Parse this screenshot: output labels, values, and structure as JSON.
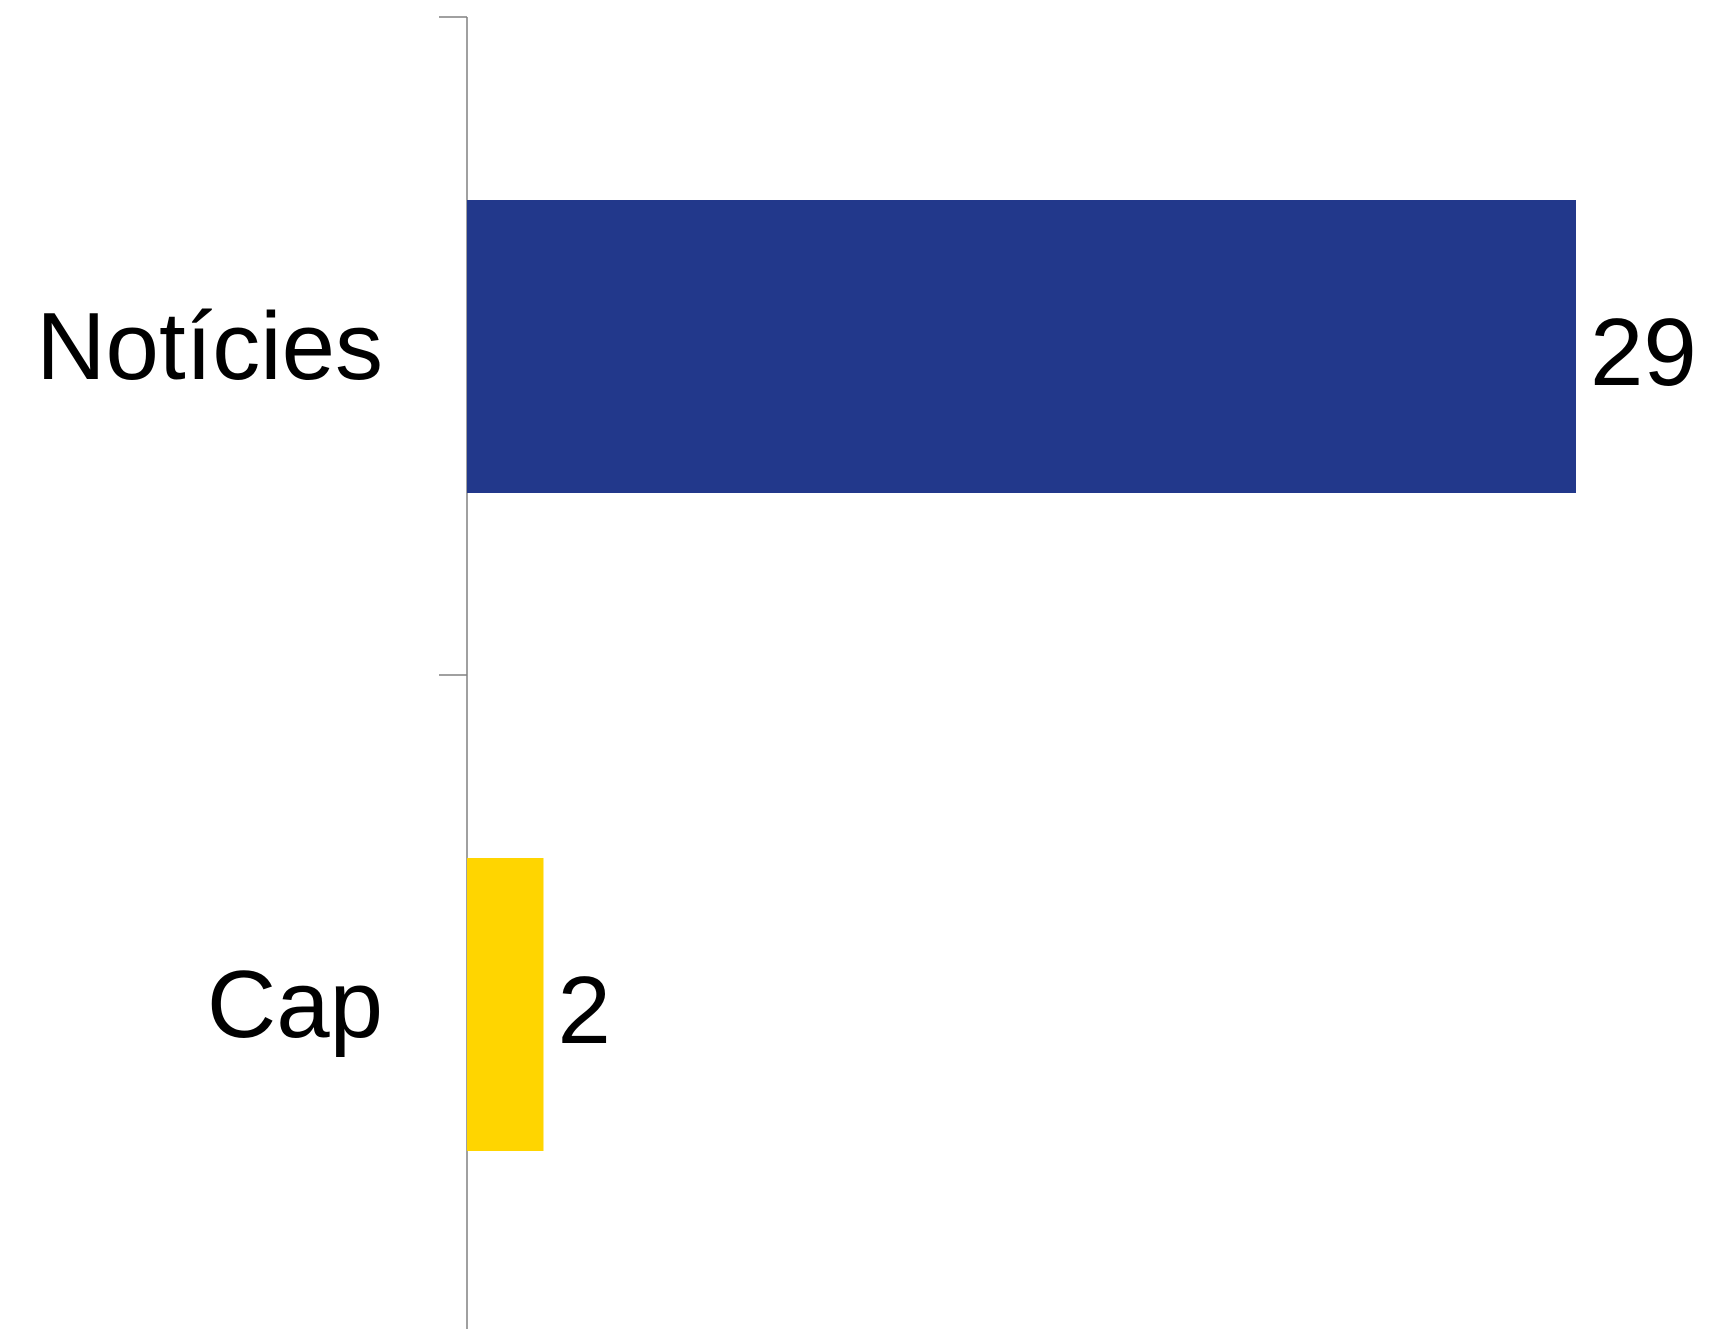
{
  "chart_data": {
    "type": "bar",
    "orientation": "horizontal",
    "categories": [
      "Notícies",
      "Cap"
    ],
    "values": [
      29,
      2
    ],
    "value_labels": [
      "29",
      "2"
    ],
    "colors": [
      "#22388B",
      "#FFD500"
    ],
    "title": "",
    "xlabel": "",
    "ylabel": "",
    "xlim": [
      0,
      29
    ],
    "grid": false,
    "legend": "none"
  }
}
